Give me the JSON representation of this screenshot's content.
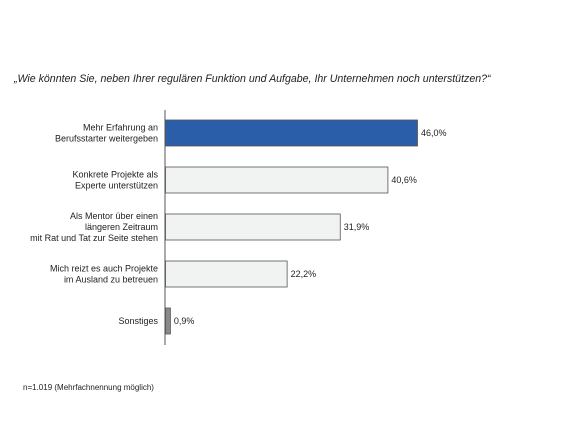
{
  "chart_data": {
    "type": "bar",
    "orientation": "horizontal",
    "title": "„Wie könnten Sie, neben Ihrer regulären Funktion und Aufgabe, Ihr Unternehmen noch unterstützen?“",
    "categories": [
      [
        "Mehr Erfahrung an",
        "Berufsstarter weitergeben"
      ],
      [
        "Konkrete Projekte als",
        "Experte unterstützen"
      ],
      [
        "Als Mentor über einen",
        "längeren Zeitraum",
        "mit Rat und Tat zur Seite stehen"
      ],
      [
        "Mich reizt es auch Projekte",
        "im Ausland zu betreuen"
      ],
      [
        "Sonstiges"
      ]
    ],
    "values": [
      46.0,
      40.6,
      31.9,
      22.2,
      0.9
    ],
    "value_labels": [
      "46,0%",
      "40,6%",
      "31,9%",
      "22,2%",
      "0,9%"
    ],
    "unit": "%",
    "xlim": [
      0,
      46.0
    ],
    "grid": false,
    "colors": {
      "highlight": "#2b5ea8",
      "default": "#f1f2f2",
      "small": "#8a8a8a",
      "border": "#555555"
    }
  },
  "footnote": "n=1.019  (Mehrfachnennung  möglich)"
}
